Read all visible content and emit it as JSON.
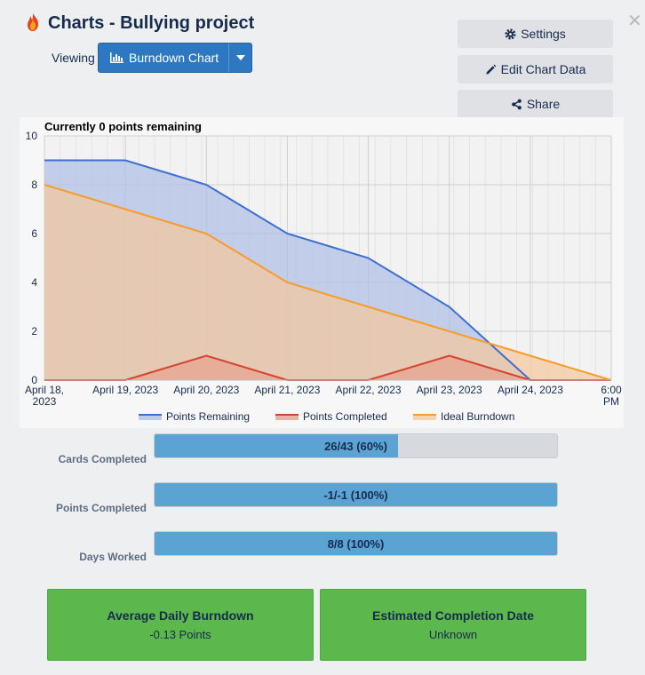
{
  "header": {
    "title": "Charts - Bullying project",
    "viewing_label": "Viewing",
    "view_select_value": "Burndown Chart"
  },
  "actions": {
    "settings_label": "Settings",
    "edit_label": "Edit Chart Data",
    "share_label": "Share"
  },
  "chart_data": {
    "type": "area",
    "title": "Currently 0 points remaining",
    "x_ticks": [
      [
        "April 18,",
        "2023"
      ],
      [
        "April 19, 2023"
      ],
      [
        "April 20, 2023"
      ],
      [
        "April 21, 2023"
      ],
      [
        "April 22, 2023"
      ],
      [
        "April 23, 2023"
      ],
      [
        "April 24, 2023"
      ],
      [
        "6:00",
        "PM"
      ]
    ],
    "ylim": [
      0,
      10
    ],
    "y_ticks": [
      0,
      2,
      4,
      6,
      8,
      10
    ],
    "grid": true,
    "legend_position": "bottom",
    "series": [
      {
        "name": "Points Remaining",
        "color": "#3d6fd1",
        "fill": "#aebfe6",
        "x": [
          0,
          1,
          2,
          3,
          4,
          5,
          6,
          7
        ],
        "y": [
          9,
          9,
          8,
          6,
          5,
          3,
          0,
          0
        ]
      },
      {
        "name": "Points Completed",
        "color": "#d5442e",
        "fill": "#e6a28f",
        "x": [
          0,
          1,
          2,
          3,
          4,
          5,
          6,
          7
        ],
        "y": [
          0,
          0,
          1,
          0,
          0,
          1,
          0,
          0
        ]
      },
      {
        "name": "Ideal Burndown",
        "color": "#f59c2b",
        "fill": "#f5c89a",
        "x": [
          0,
          1,
          2,
          3,
          4,
          5,
          6,
          7
        ],
        "y": [
          8,
          7,
          6,
          4,
          3,
          2,
          1,
          0
        ]
      }
    ]
  },
  "progress": [
    {
      "label": "Cards Completed",
      "text": "26/43 (60%)",
      "fraction": 0.6047
    },
    {
      "label": "Points Completed",
      "text": "-1/-1 (100%)",
      "fraction": 1.0
    },
    {
      "label": "Days Worked",
      "text": "8/8 (100%)",
      "fraction": 1.0
    }
  ],
  "stats": [
    {
      "title": "Average Daily Burndown",
      "value": "-0.13 Points"
    },
    {
      "title": "Estimated Completion Date",
      "value": "Unknown"
    }
  ]
}
